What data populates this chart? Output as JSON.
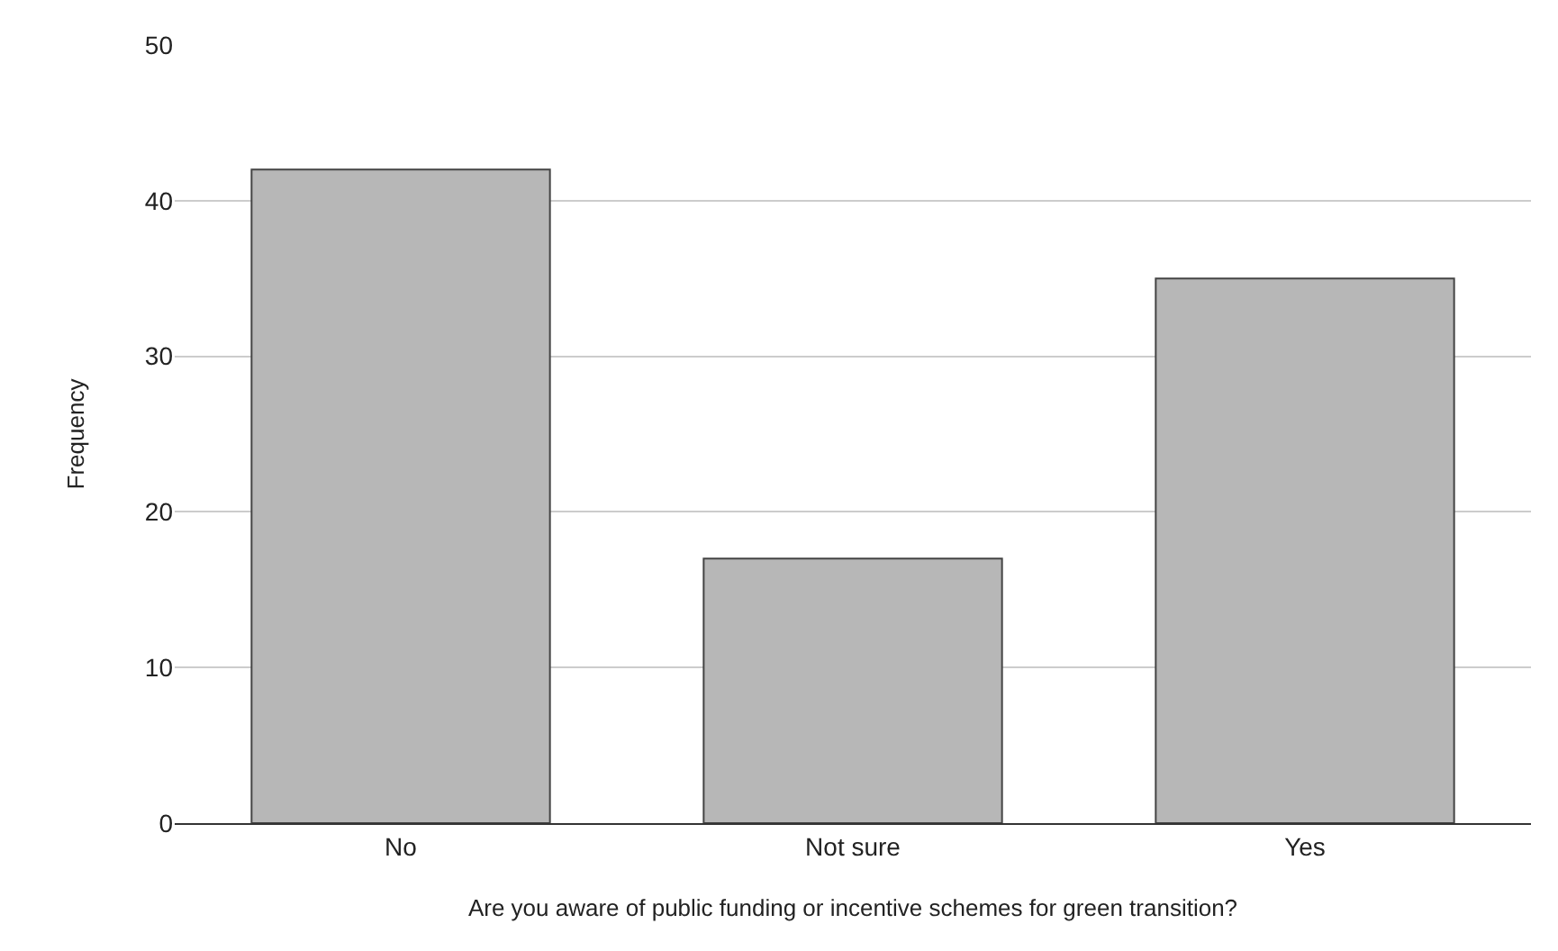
{
  "chart_data": {
    "type": "bar",
    "xlabel": "Are you aware of public funding or incentive schemes for green transition?",
    "ylabel": "Frequency",
    "categories": [
      "No",
      "Not sure",
      "Yes"
    ],
    "values": [
      42,
      17,
      35
    ],
    "color": "#b7b7b7",
    "ylim": [
      0,
      50
    ],
    "yticks": [
      0,
      10,
      20,
      30,
      40,
      50
    ],
    "grid": "y"
  }
}
